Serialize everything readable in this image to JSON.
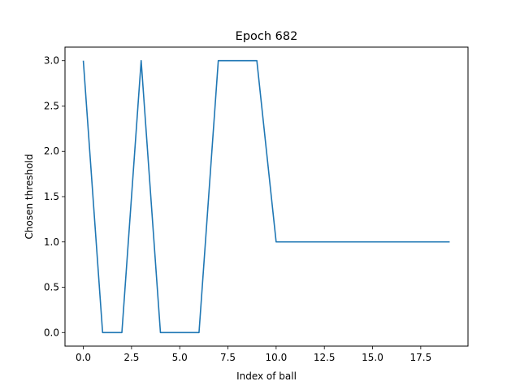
{
  "chart_data": {
    "type": "line",
    "title": "Epoch 682",
    "xlabel": "Index of ball",
    "ylabel": "Chosen threshold",
    "x": [
      0,
      1,
      2,
      3,
      4,
      5,
      6,
      7,
      8,
      9,
      10,
      11,
      12,
      13,
      14,
      15,
      16,
      17,
      18,
      19
    ],
    "series": [
      {
        "values": [
          3,
          0,
          0,
          3,
          0,
          0,
          0,
          3,
          3,
          3,
          1,
          1,
          1,
          1,
          1,
          1,
          1,
          1,
          1,
          1
        ],
        "color": "#1f77b4"
      }
    ],
    "xlim": [
      -0.95,
      19.95
    ],
    "ylim": [
      -0.15,
      3.15
    ],
    "xticks": [
      0.0,
      2.5,
      5.0,
      7.5,
      10.0,
      12.5,
      15.0,
      17.5
    ],
    "xtick_labels": [
      "0.0",
      "2.5",
      "5.0",
      "7.5",
      "10.0",
      "12.5",
      "15.0",
      "17.5"
    ],
    "yticks": [
      0.0,
      0.5,
      1.0,
      1.5,
      2.0,
      2.5,
      3.0
    ],
    "ytick_labels": [
      "0.0",
      "0.5",
      "1.0",
      "1.5",
      "2.0",
      "2.5",
      "3.0"
    ],
    "grid": false,
    "legend": "none"
  }
}
